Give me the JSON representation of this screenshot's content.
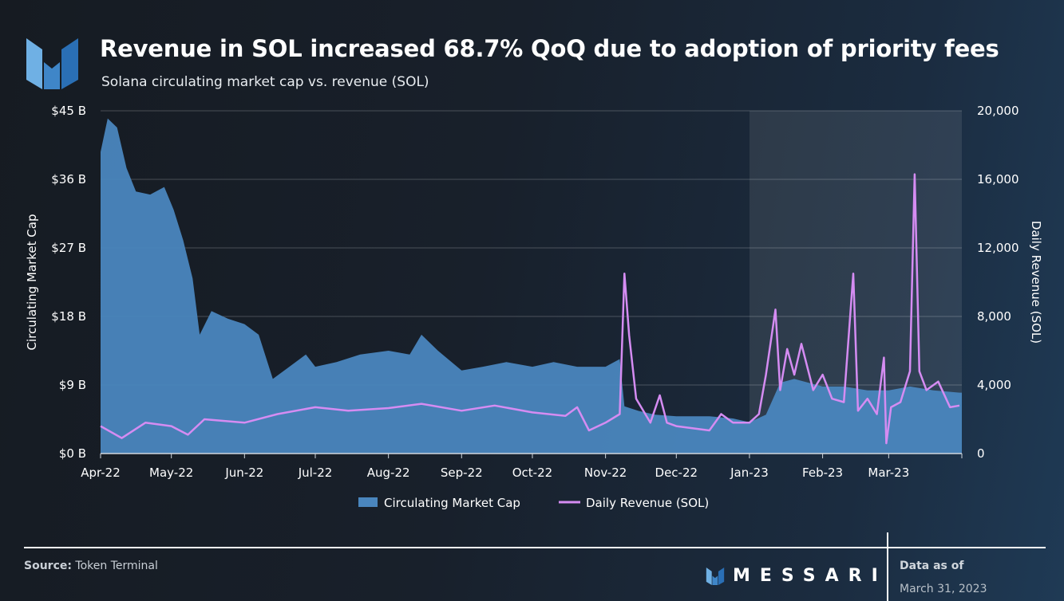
{
  "header": {
    "title": "Revenue in SOL increased 68.7% QoQ due to adoption of priority fees",
    "subtitle": "Solana circulating market cap vs. revenue (SOL)"
  },
  "footer": {
    "source_label": "Source:",
    "source_value": "Token Terminal",
    "brand": "MESSARI",
    "as_of_label": "Data as of",
    "as_of_date": "March 31, 2023"
  },
  "colors": {
    "market_cap": "#4a86be",
    "revenue": "#d58cf2",
    "highlight": "#ffffff"
  },
  "chart_data": {
    "type": "area+line",
    "xlim": [
      "2022-04-01",
      "2023-03-31"
    ],
    "x_ticks": [
      "Apr-22",
      "May-22",
      "Jun-22",
      "Jul-22",
      "Aug-22",
      "Sep-22",
      "Oct-22",
      "Nov-22",
      "Dec-22",
      "Jan-23",
      "Feb-23",
      "Mar-23"
    ],
    "y_left": {
      "label": "Circulating Market Cap",
      "ticks": [
        "$0 B",
        "$9 B",
        "$18 B",
        "$27 B",
        "$36 B",
        "$45 B"
      ],
      "range": [
        0,
        45
      ]
    },
    "y_right": {
      "label": "Daily Revenue (SOL)",
      "ticks": [
        "0",
        "4,000",
        "8,000",
        "12,000",
        "16,000",
        "20,000"
      ],
      "range": [
        0,
        20000
      ]
    },
    "grid": "horizontal",
    "highlight_range": [
      "2023-01-01",
      "2023-03-31"
    ],
    "legend": {
      "position": "bottom",
      "items": [
        "Circulating Market Cap",
        "Daily Revenue (SOL)"
      ]
    },
    "series": [
      {
        "name": "Circulating Market Cap",
        "type": "area",
        "axis": "left",
        "points": [
          [
            "2022-04-01",
            39.6
          ],
          [
            "2022-04-04",
            44
          ],
          [
            "2022-04-08",
            42.8
          ],
          [
            "2022-04-12",
            37.5
          ],
          [
            "2022-04-16",
            34.4
          ],
          [
            "2022-04-22",
            34
          ],
          [
            "2022-04-28",
            35
          ],
          [
            "2022-05-02",
            32
          ],
          [
            "2022-05-06",
            28
          ],
          [
            "2022-05-10",
            23
          ],
          [
            "2022-05-13",
            15.6
          ],
          [
            "2022-05-18",
            18.7
          ],
          [
            "2022-05-25",
            17.7
          ],
          [
            "2022-06-01",
            17
          ],
          [
            "2022-06-07",
            15.6
          ],
          [
            "2022-06-13",
            9.8
          ],
          [
            "2022-06-20",
            11.4
          ],
          [
            "2022-06-27",
            13
          ],
          [
            "2022-07-01",
            11.4
          ],
          [
            "2022-07-10",
            12
          ],
          [
            "2022-07-20",
            13
          ],
          [
            "2022-08-01",
            13.5
          ],
          [
            "2022-08-10",
            13
          ],
          [
            "2022-08-15",
            15.6
          ],
          [
            "2022-08-22",
            13.5
          ],
          [
            "2022-09-01",
            10.9
          ],
          [
            "2022-09-10",
            11.4
          ],
          [
            "2022-09-20",
            12
          ],
          [
            "2022-10-01",
            11.4
          ],
          [
            "2022-10-10",
            12
          ],
          [
            "2022-10-20",
            11.4
          ],
          [
            "2022-11-01",
            11.4
          ],
          [
            "2022-11-07",
            12.4
          ],
          [
            "2022-11-09",
            6.2
          ],
          [
            "2022-11-15",
            5.6
          ],
          [
            "2022-11-22",
            5.1
          ],
          [
            "2022-12-01",
            4.9
          ],
          [
            "2022-12-15",
            4.9
          ],
          [
            "2022-12-25",
            4.6
          ],
          [
            "2023-01-01",
            4.1
          ],
          [
            "2023-01-08",
            5.1
          ],
          [
            "2023-01-14",
            9.3
          ],
          [
            "2023-01-20",
            9.8
          ],
          [
            "2023-02-01",
            8.8
          ],
          [
            "2023-02-10",
            8.8
          ],
          [
            "2023-02-20",
            8.3
          ],
          [
            "2023-03-01",
            8.3
          ],
          [
            "2023-03-10",
            8.8
          ],
          [
            "2023-03-20",
            8.3
          ],
          [
            "2023-03-31",
            8
          ]
        ]
      },
      {
        "name": "Daily Revenue (SOL)",
        "type": "line",
        "axis": "right",
        "points": [
          [
            "2022-04-01",
            1600
          ],
          [
            "2022-04-10",
            900
          ],
          [
            "2022-04-20",
            1800
          ],
          [
            "2022-05-01",
            1600
          ],
          [
            "2022-05-08",
            1100
          ],
          [
            "2022-05-15",
            2000
          ],
          [
            "2022-06-01",
            1800
          ],
          [
            "2022-06-15",
            2300
          ],
          [
            "2022-07-01",
            2700
          ],
          [
            "2022-07-15",
            2500
          ],
          [
            "2022-08-01",
            2650
          ],
          [
            "2022-08-15",
            2900
          ],
          [
            "2022-09-01",
            2500
          ],
          [
            "2022-09-15",
            2800
          ],
          [
            "2022-10-01",
            2400
          ],
          [
            "2022-10-15",
            2200
          ],
          [
            "2022-10-20",
            2700
          ],
          [
            "2022-10-25",
            1350
          ],
          [
            "2022-11-01",
            1800
          ],
          [
            "2022-11-07",
            2300
          ],
          [
            "2022-11-09",
            10500
          ],
          [
            "2022-11-11",
            6900
          ],
          [
            "2022-11-14",
            3200
          ],
          [
            "2022-11-20",
            1800
          ],
          [
            "2022-11-24",
            3400
          ],
          [
            "2022-11-27",
            1800
          ],
          [
            "2022-12-01",
            1600
          ],
          [
            "2022-12-15",
            1350
          ],
          [
            "2022-12-20",
            2300
          ],
          [
            "2022-12-25",
            1800
          ],
          [
            "2023-01-01",
            1800
          ],
          [
            "2023-01-05",
            2300
          ],
          [
            "2023-01-08",
            4600
          ],
          [
            "2023-01-12",
            8400
          ],
          [
            "2023-01-14",
            3700
          ],
          [
            "2023-01-17",
            6100
          ],
          [
            "2023-01-20",
            4600
          ],
          [
            "2023-01-23",
            6400
          ],
          [
            "2023-01-28",
            3700
          ],
          [
            "2023-02-01",
            4600
          ],
          [
            "2023-02-05",
            3200
          ],
          [
            "2023-02-10",
            3000
          ],
          [
            "2023-02-14",
            10500
          ],
          [
            "2023-02-16",
            2500
          ],
          [
            "2023-02-20",
            3200
          ],
          [
            "2023-02-24",
            2300
          ],
          [
            "2023-02-27",
            5600
          ],
          [
            "2023-02-28",
            600
          ],
          [
            "2023-03-02",
            2700
          ],
          [
            "2023-03-06",
            3000
          ],
          [
            "2023-03-10",
            4800
          ],
          [
            "2023-03-12",
            16300
          ],
          [
            "2023-03-14",
            4800
          ],
          [
            "2023-03-17",
            3700
          ],
          [
            "2023-03-22",
            4200
          ],
          [
            "2023-03-27",
            2700
          ],
          [
            "2023-03-31",
            2800
          ]
        ]
      }
    ]
  }
}
